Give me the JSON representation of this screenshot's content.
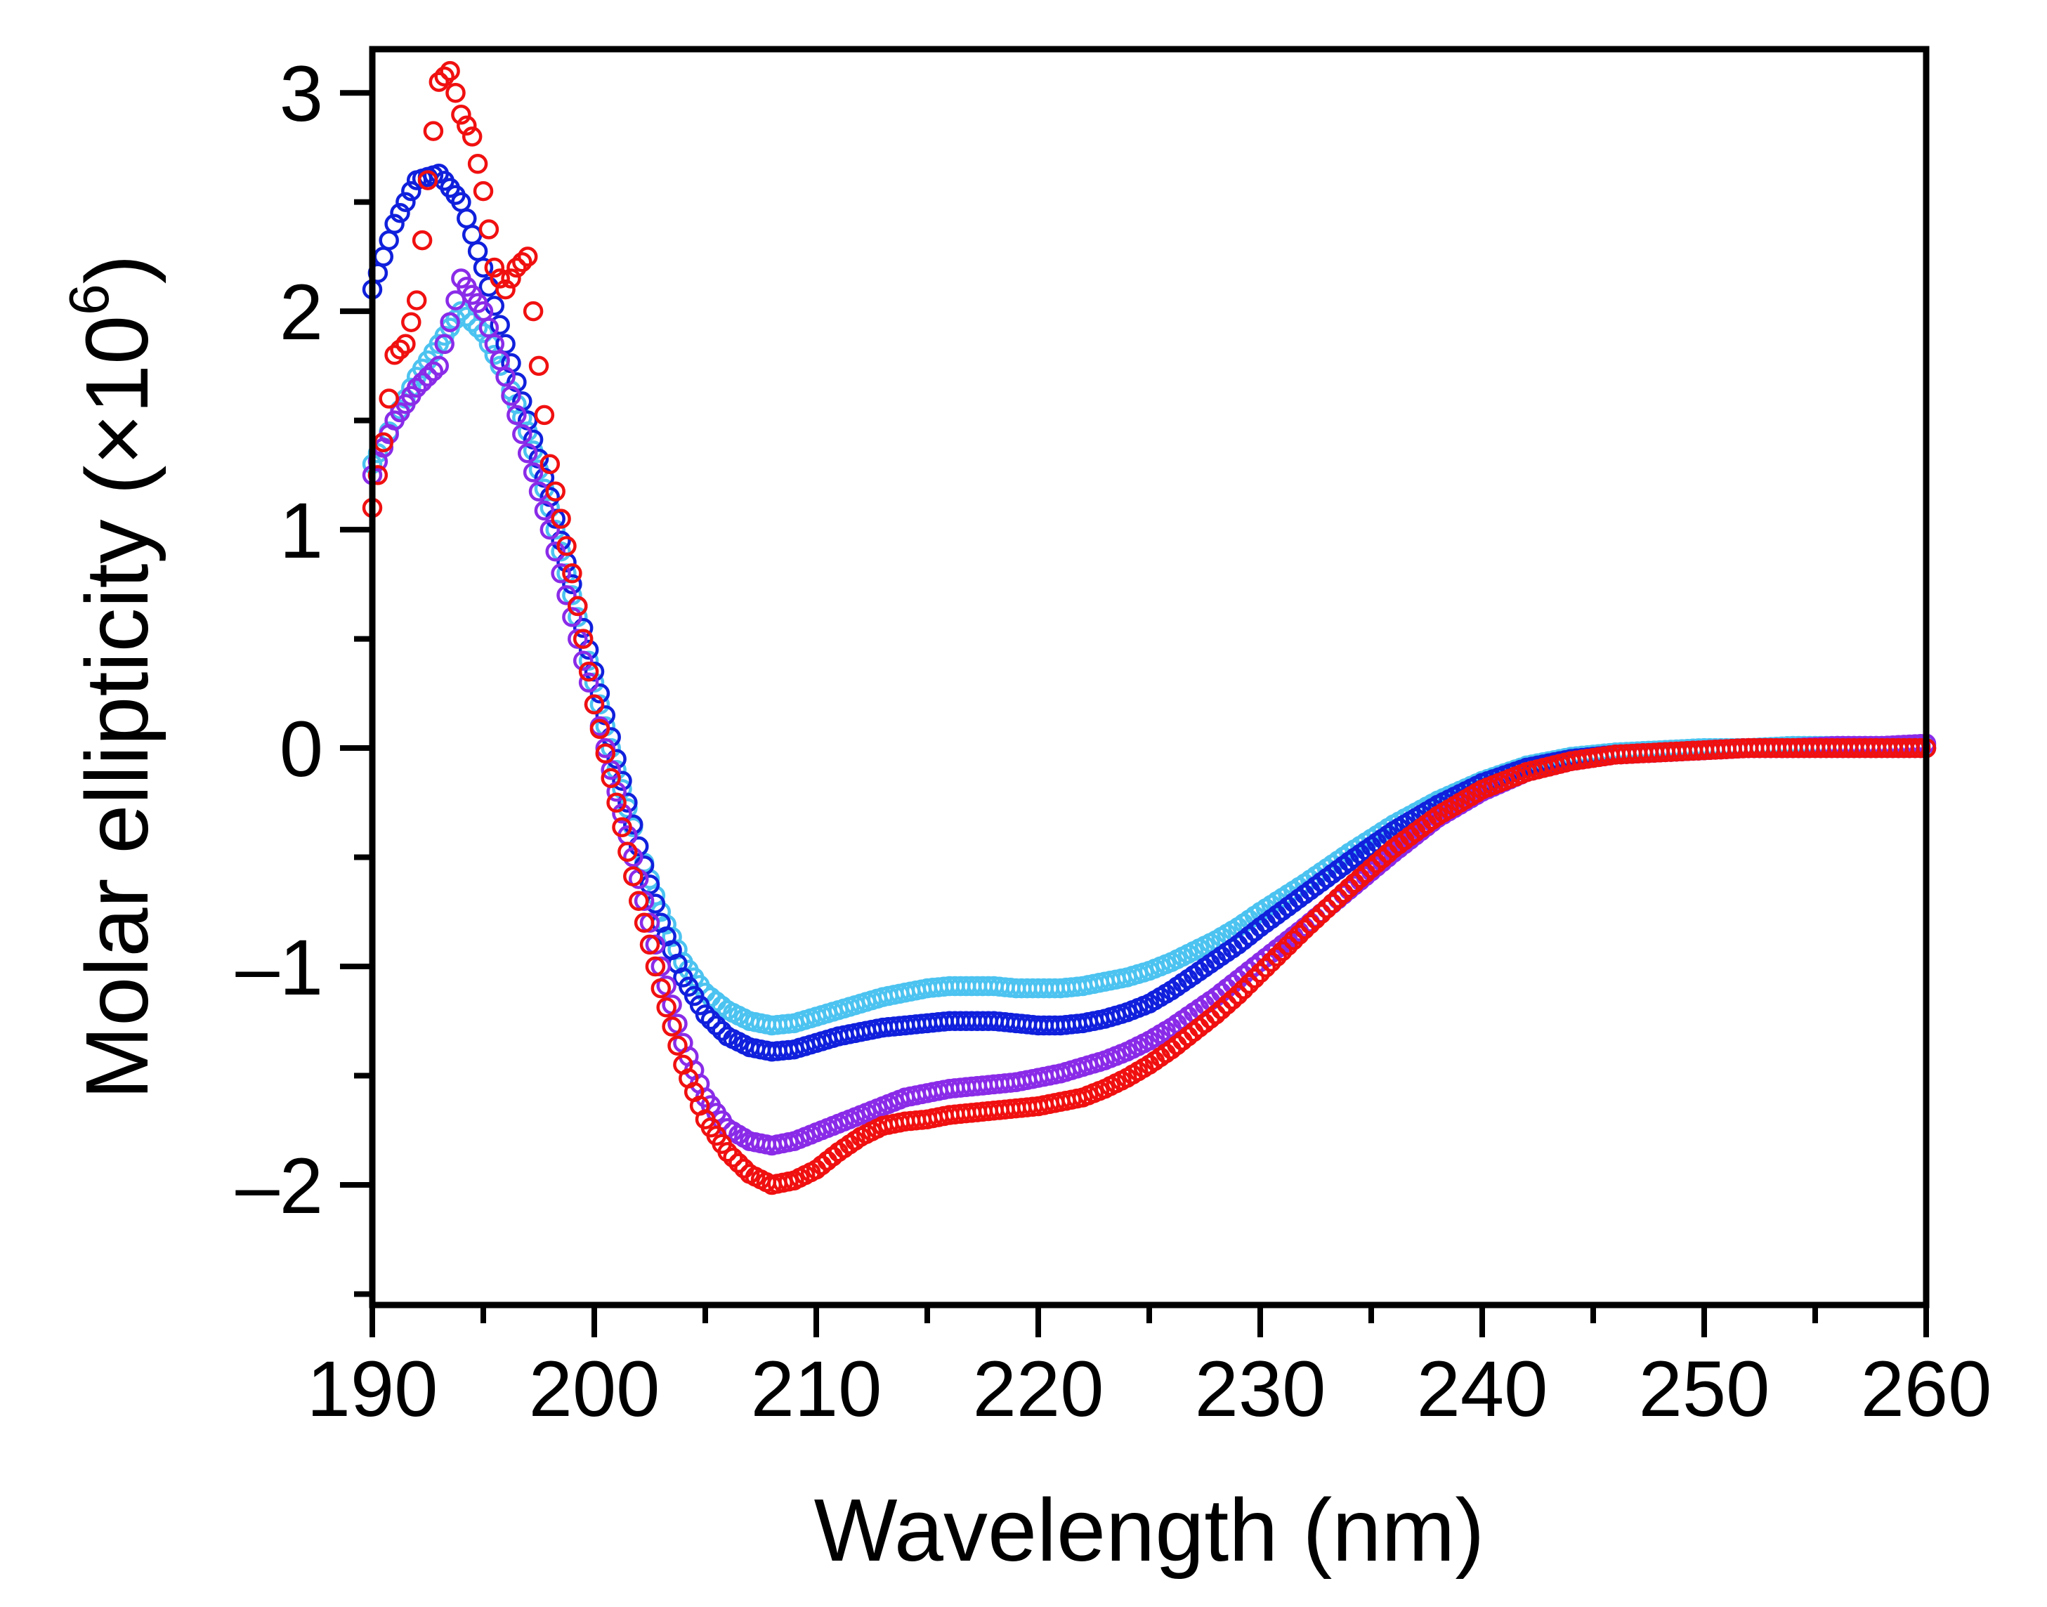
{
  "chart_data": {
    "type": "scatter",
    "title": "",
    "xlabel": "Wavelength (nm)",
    "ylabel": "Molar ellipticity (×10⁶)",
    "ylabel_parts": {
      "text": "Molar ellipticity (×10",
      "exponent": "6",
      "close": ")"
    },
    "xlim": [
      190,
      260
    ],
    "ylim": [
      -2.55,
      3.2
    ],
    "xticks": [
      190,
      200,
      210,
      220,
      230,
      240,
      250,
      260
    ],
    "xtick_labels": [
      "190",
      "200",
      "210",
      "220",
      "230",
      "240",
      "250",
      "260"
    ],
    "yticks": [
      3,
      2,
      1,
      0,
      -1,
      -2
    ],
    "ytick_labels": [
      "3",
      "2",
      "1",
      "0",
      "–1",
      "–2"
    ],
    "marker": "open-circle",
    "grid": false,
    "legend": "none",
    "series": [
      {
        "name": "light blue",
        "color": "#4cc3f0",
        "x": [
          190,
          191,
          192,
          193,
          194,
          195,
          196,
          197,
          198,
          199,
          200,
          201,
          202,
          203,
          204,
          205,
          206,
          207,
          208,
          209,
          210,
          211,
          212,
          213,
          214,
          215,
          216,
          217,
          218,
          219,
          220,
          221,
          222,
          223,
          224,
          225,
          226,
          227,
          228,
          229,
          230,
          232,
          234,
          236,
          238,
          240,
          242,
          244,
          246,
          248,
          250,
          252,
          254,
          256,
          258,
          260
        ],
        "y": [
          1.3,
          1.5,
          1.7,
          1.85,
          2.0,
          1.9,
          1.7,
          1.45,
          1.1,
          0.7,
          0.3,
          -0.1,
          -0.45,
          -0.75,
          -0.98,
          -1.12,
          -1.2,
          -1.25,
          -1.27,
          -1.26,
          -1.23,
          -1.2,
          -1.17,
          -1.14,
          -1.12,
          -1.1,
          -1.09,
          -1.09,
          -1.09,
          -1.1,
          -1.1,
          -1.1,
          -1.09,
          -1.07,
          -1.05,
          -1.02,
          -0.98,
          -0.93,
          -0.88,
          -0.82,
          -0.75,
          -0.62,
          -0.48,
          -0.35,
          -0.24,
          -0.15,
          -0.08,
          -0.04,
          -0.02,
          -0.01,
          0.0,
          0.0,
          0.01,
          0.01,
          0.01,
          0.01
        ]
      },
      {
        "name": "dark blue",
        "color": "#1020dc",
        "x": [
          190,
          191,
          192,
          193,
          194,
          195,
          196,
          197,
          198,
          199,
          200,
          201,
          202,
          203,
          204,
          205,
          206,
          207,
          208,
          209,
          210,
          211,
          212,
          213,
          214,
          215,
          216,
          217,
          218,
          219,
          220,
          221,
          222,
          223,
          224,
          225,
          226,
          227,
          228,
          229,
          230,
          232,
          234,
          236,
          238,
          240,
          242,
          244,
          246,
          248,
          250,
          252,
          254,
          256,
          258,
          260
        ],
        "y": [
          2.1,
          2.4,
          2.6,
          2.63,
          2.5,
          2.2,
          1.85,
          1.5,
          1.15,
          0.75,
          0.35,
          -0.05,
          -0.45,
          -0.8,
          -1.05,
          -1.22,
          -1.32,
          -1.37,
          -1.39,
          -1.38,
          -1.35,
          -1.32,
          -1.3,
          -1.28,
          -1.27,
          -1.26,
          -1.25,
          -1.25,
          -1.25,
          -1.26,
          -1.27,
          -1.27,
          -1.26,
          -1.24,
          -1.21,
          -1.17,
          -1.11,
          -1.04,
          -0.97,
          -0.9,
          -0.82,
          -0.67,
          -0.52,
          -0.38,
          -0.26,
          -0.16,
          -0.09,
          -0.05,
          -0.03,
          -0.02,
          -0.01,
          0.0,
          0.0,
          0.0,
          0.0,
          0.0
        ]
      },
      {
        "name": "purple",
        "color": "#8a2be8",
        "x": [
          190,
          191,
          192,
          193,
          194,
          195,
          196,
          197,
          198,
          199,
          200,
          201,
          202,
          203,
          204,
          205,
          206,
          207,
          208,
          209,
          210,
          211,
          212,
          213,
          214,
          215,
          216,
          217,
          218,
          219,
          220,
          221,
          222,
          223,
          224,
          225,
          226,
          227,
          228,
          229,
          230,
          232,
          234,
          236,
          238,
          240,
          242,
          244,
          246,
          248,
          250,
          252,
          254,
          256,
          258,
          260
        ],
        "y": [
          1.25,
          1.5,
          1.65,
          1.75,
          2.15,
          2.0,
          1.7,
          1.35,
          1.0,
          0.6,
          0.2,
          -0.2,
          -0.6,
          -1.0,
          -1.35,
          -1.6,
          -1.74,
          -1.8,
          -1.82,
          -1.8,
          -1.76,
          -1.72,
          -1.68,
          -1.64,
          -1.6,
          -1.58,
          -1.56,
          -1.55,
          -1.54,
          -1.53,
          -1.51,
          -1.49,
          -1.46,
          -1.43,
          -1.39,
          -1.34,
          -1.28,
          -1.21,
          -1.14,
          -1.06,
          -0.98,
          -0.82,
          -0.65,
          -0.48,
          -0.32,
          -0.2,
          -0.11,
          -0.06,
          -0.03,
          -0.02,
          -0.01,
          0.0,
          0.0,
          0.01,
          0.01,
          0.02
        ]
      },
      {
        "name": "red",
        "color": "#f01010",
        "x": [
          190,
          190.5,
          191,
          191.5,
          192,
          192.5,
          193,
          193.5,
          194,
          194.5,
          195,
          195.5,
          196,
          196.5,
          197,
          197.5,
          198,
          199,
          200,
          201,
          202,
          203,
          204,
          205,
          206,
          207,
          208,
          209,
          210,
          211,
          212,
          213,
          214,
          215,
          216,
          217,
          218,
          219,
          220,
          221,
          222,
          223,
          224,
          225,
          226,
          227,
          228,
          229,
          230,
          232,
          234,
          236,
          238,
          240,
          242,
          244,
          246,
          248,
          250,
          252,
          254,
          256,
          258,
          260
        ],
        "y": [
          1.1,
          1.4,
          1.8,
          1.85,
          2.05,
          2.6,
          3.05,
          3.1,
          2.9,
          2.8,
          2.55,
          2.2,
          2.1,
          2.2,
          2.25,
          1.75,
          1.3,
          0.8,
          0.2,
          -0.25,
          -0.7,
          -1.1,
          -1.45,
          -1.7,
          -1.85,
          -1.95,
          -2.0,
          -1.98,
          -1.93,
          -1.85,
          -1.78,
          -1.73,
          -1.71,
          -1.7,
          -1.68,
          -1.67,
          -1.66,
          -1.65,
          -1.64,
          -1.62,
          -1.6,
          -1.56,
          -1.51,
          -1.45,
          -1.38,
          -1.3,
          -1.22,
          -1.13,
          -1.03,
          -0.83,
          -0.64,
          -0.46,
          -0.31,
          -0.19,
          -0.11,
          -0.06,
          -0.03,
          -0.02,
          -0.01,
          0.0,
          0.0,
          0.0,
          0.0,
          0.0
        ]
      }
    ]
  }
}
